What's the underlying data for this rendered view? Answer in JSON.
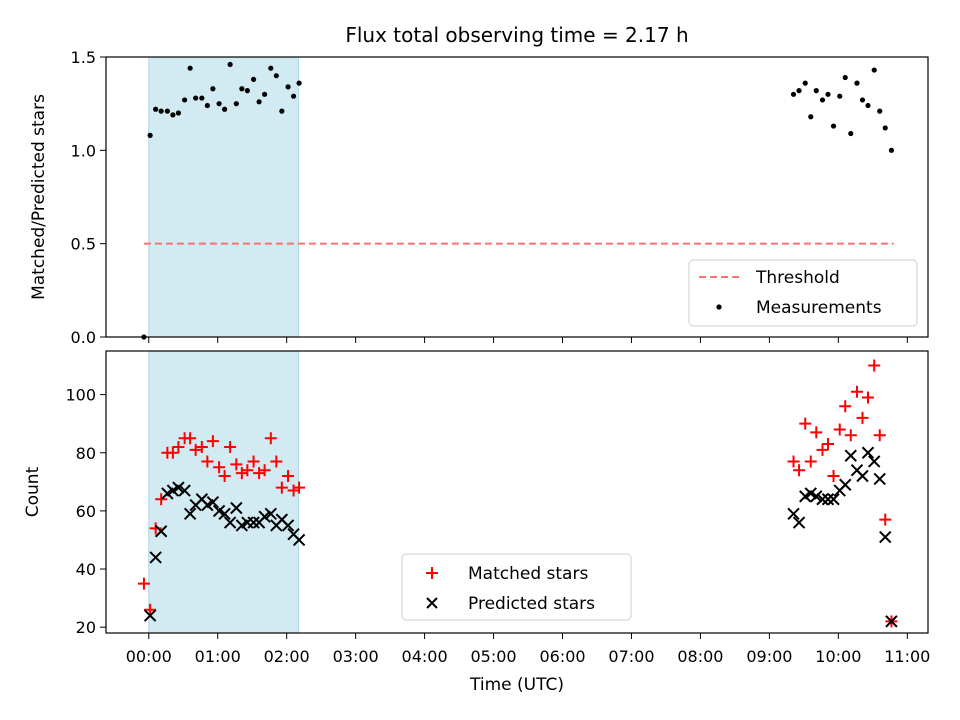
{
  "chart_data": {
    "title": "Flux total observing time = 2.17 h",
    "xlabel": "Time (UTC)",
    "x_tick_labels": [
      "00:00",
      "01:00",
      "02:00",
      "03:00",
      "04:00",
      "05:00",
      "06:00",
      "07:00",
      "08:00",
      "09:00",
      "10:00",
      "11:00"
    ],
    "xlim_hours": [
      -0.62,
      11.3
    ],
    "shaded_interval_hours": [
      0.0,
      2.17
    ],
    "colors": {
      "shade": "#add8e6",
      "threshold": "#ff7070",
      "matched": "#ff0000",
      "predicted": "#000000",
      "measurements": "#000000"
    },
    "panels": [
      {
        "type": "scatter",
        "ylabel": "Matched/Predicted stars",
        "ylim": [
          0.0,
          1.5
        ],
        "y_ticks": [
          0.0,
          0.5,
          1.0,
          1.5
        ],
        "y_tick_labels": [
          "0.0",
          "0.5",
          "1.0",
          "1.5"
        ],
        "legend_position": "lower-right",
        "threshold": {
          "name": "Threshold",
          "value": 0.5,
          "x_range_hours": [
            -0.07,
            10.8
          ]
        },
        "series": [
          {
            "name": "Measurements",
            "marker": "dot",
            "points": [
              [
                -0.07,
                0.0
              ],
              [
                0.02,
                1.08
              ],
              [
                0.1,
                1.22
              ],
              [
                0.18,
                1.21
              ],
              [
                0.27,
                1.21
              ],
              [
                0.35,
                1.19
              ],
              [
                0.43,
                1.2
              ],
              [
                0.52,
                1.27
              ],
              [
                0.6,
                1.44
              ],
              [
                0.68,
                1.28
              ],
              [
                0.77,
                1.28
              ],
              [
                0.85,
                1.24
              ],
              [
                0.93,
                1.33
              ],
              [
                1.02,
                1.25
              ],
              [
                1.1,
                1.22
              ],
              [
                1.18,
                1.46
              ],
              [
                1.27,
                1.25
              ],
              [
                1.35,
                1.33
              ],
              [
                1.43,
                1.32
              ],
              [
                1.52,
                1.38
              ],
              [
                1.6,
                1.26
              ],
              [
                1.68,
                1.3
              ],
              [
                1.77,
                1.44
              ],
              [
                1.85,
                1.4
              ],
              [
                1.93,
                1.21
              ],
              [
                2.02,
                1.34
              ],
              [
                2.1,
                1.29
              ],
              [
                2.18,
                1.36
              ],
              [
                9.35,
                1.3
              ],
              [
                9.43,
                1.32
              ],
              [
                9.52,
                1.36
              ],
              [
                9.6,
                1.18
              ],
              [
                9.68,
                1.32
              ],
              [
                9.77,
                1.27
              ],
              [
                9.85,
                1.3
              ],
              [
                9.93,
                1.13
              ],
              [
                10.02,
                1.29
              ],
              [
                10.1,
                1.39
              ],
              [
                10.18,
                1.09
              ],
              [
                10.27,
                1.36
              ],
              [
                10.35,
                1.27
              ],
              [
                10.43,
                1.24
              ],
              [
                10.52,
                1.43
              ],
              [
                10.6,
                1.21
              ],
              [
                10.68,
                1.12
              ],
              [
                10.77,
                1.0
              ]
            ]
          }
        ]
      },
      {
        "type": "scatter",
        "ylabel": "Count",
        "ylim": [
          18,
          115
        ],
        "y_ticks": [
          20,
          40,
          60,
          80,
          100
        ],
        "y_tick_labels": [
          "20",
          "40",
          "60",
          "80",
          "100"
        ],
        "legend_position": "lower-center",
        "series": [
          {
            "name": "Matched stars",
            "marker": "plus",
            "points": [
              [
                -0.07,
                35
              ],
              [
                0.02,
                26
              ],
              [
                0.1,
                54
              ],
              [
                0.18,
                64
              ],
              [
                0.27,
                80
              ],
              [
                0.35,
                80
              ],
              [
                0.43,
                82
              ],
              [
                0.52,
                85
              ],
              [
                0.6,
                85
              ],
              [
                0.68,
                81
              ],
              [
                0.77,
                82
              ],
              [
                0.85,
                77
              ],
              [
                0.93,
                84
              ],
              [
                1.02,
                75
              ],
              [
                1.1,
                72
              ],
              [
                1.18,
                82
              ],
              [
                1.27,
                76
              ],
              [
                1.35,
                73
              ],
              [
                1.43,
                74
              ],
              [
                1.52,
                77
              ],
              [
                1.6,
                73
              ],
              [
                1.68,
                74
              ],
              [
                1.77,
                85
              ],
              [
                1.85,
                77
              ],
              [
                1.93,
                68
              ],
              [
                2.02,
                72
              ],
              [
                2.1,
                67
              ],
              [
                2.18,
                68
              ],
              [
                9.35,
                77
              ],
              [
                9.43,
                74
              ],
              [
                9.52,
                90
              ],
              [
                9.6,
                77
              ],
              [
                9.68,
                87
              ],
              [
                9.77,
                81
              ],
              [
                9.85,
                83
              ],
              [
                9.93,
                72
              ],
              [
                10.02,
                88
              ],
              [
                10.1,
                96
              ],
              [
                10.18,
                86
              ],
              [
                10.27,
                101
              ],
              [
                10.35,
                92
              ],
              [
                10.43,
                99
              ],
              [
                10.52,
                110
              ],
              [
                10.6,
                86
              ],
              [
                10.68,
                57
              ],
              [
                10.77,
                22
              ]
            ]
          },
          {
            "name": "Predicted stars",
            "marker": "x",
            "points": [
              [
                0.02,
                24
              ],
              [
                0.1,
                44
              ],
              [
                0.18,
                53
              ],
              [
                0.27,
                66
              ],
              [
                0.35,
                67
              ],
              [
                0.43,
                68
              ],
              [
                0.52,
                67
              ],
              [
                0.6,
                59
              ],
              [
                0.68,
                62
              ],
              [
                0.77,
                64
              ],
              [
                0.85,
                62
              ],
              [
                0.93,
                63
              ],
              [
                1.02,
                60
              ],
              [
                1.1,
                59
              ],
              [
                1.18,
                56
              ],
              [
                1.27,
                61
              ],
              [
                1.35,
                55
              ],
              [
                1.43,
                56
              ],
              [
                1.52,
                56
              ],
              [
                1.6,
                56
              ],
              [
                1.68,
                58
              ],
              [
                1.77,
                59
              ],
              [
                1.85,
                55
              ],
              [
                1.93,
                57
              ],
              [
                2.02,
                55
              ],
              [
                2.1,
                52
              ],
              [
                2.18,
                50
              ],
              [
                9.35,
                59
              ],
              [
                9.43,
                56
              ],
              [
                9.52,
                65
              ],
              [
                9.6,
                66
              ],
              [
                9.68,
                65
              ],
              [
                9.77,
                64
              ],
              [
                9.85,
                64
              ],
              [
                9.93,
                64
              ],
              [
                10.02,
                67
              ],
              [
                10.1,
                69
              ],
              [
                10.18,
                79
              ],
              [
                10.27,
                74
              ],
              [
                10.35,
                72
              ],
              [
                10.43,
                80
              ],
              [
                10.52,
                77
              ],
              [
                10.6,
                71
              ],
              [
                10.68,
                51
              ],
              [
                10.77,
                22
              ]
            ]
          }
        ]
      }
    ]
  }
}
